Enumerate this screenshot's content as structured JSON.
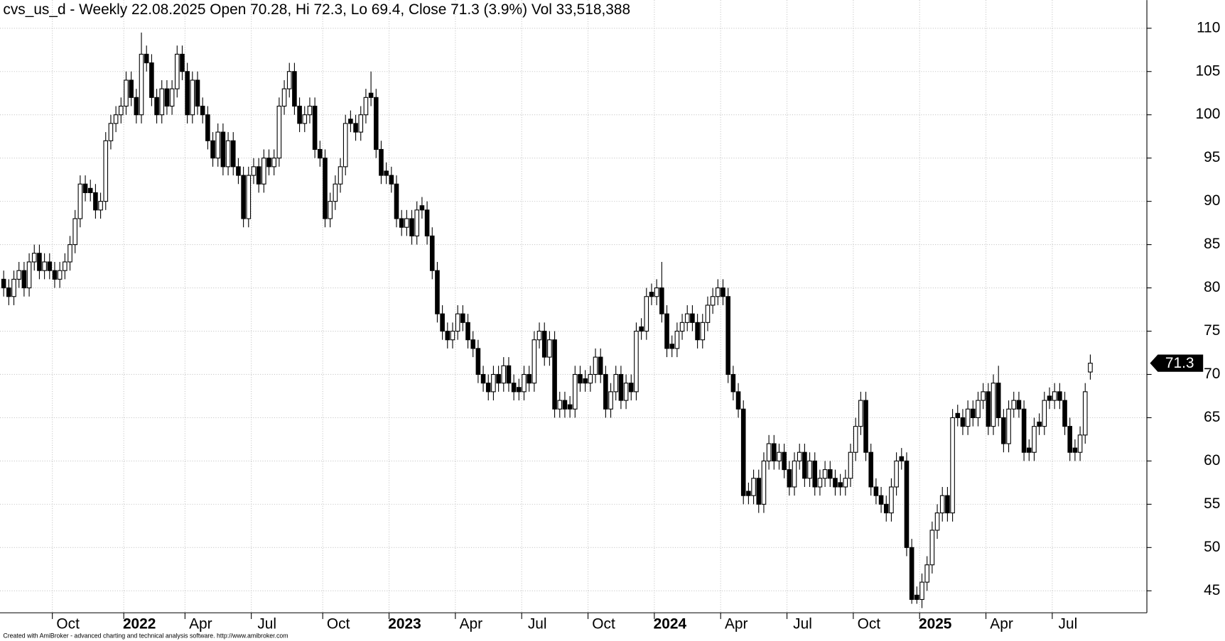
{
  "chart_data": {
    "type": "candlestick",
    "title": "cvs_us_d - Weekly 22.08.2025 Open 70.28, Hi 72.3, Lo 69.4, Close 71.3 (3.9%) Vol 33,518,388",
    "footer": "Created with AmiBroker - advanced charting and technical analysis software. http://www.amibroker.com",
    "categories": [
      null,
      null,
      null,
      null,
      null,
      null,
      null,
      null,
      null,
      null,
      "Oct",
      null,
      null,
      null,
      null,
      null,
      null,
      null,
      null,
      null,
      null,
      null,
      null,
      null,
      "2022",
      null,
      null,
      null,
      null,
      null,
      null,
      null,
      null,
      null,
      null,
      null,
      "Apr",
      null,
      null,
      null,
      null,
      null,
      null,
      null,
      null,
      null,
      null,
      null,
      null,
      "Jul",
      null,
      null,
      null,
      null,
      null,
      null,
      null,
      null,
      null,
      null,
      null,
      null,
      null,
      "Oct",
      null,
      null,
      null,
      null,
      null,
      null,
      null,
      null,
      null,
      null,
      null,
      null,
      "2023",
      null,
      null,
      null,
      null,
      null,
      null,
      null,
      null,
      null,
      null,
      null,
      null,
      "Apr",
      null,
      null,
      null,
      null,
      null,
      null,
      null,
      null,
      null,
      null,
      null,
      null,
      "Jul",
      null,
      null,
      null,
      null,
      null,
      null,
      null,
      null,
      null,
      null,
      null,
      null,
      "Oct",
      null,
      null,
      null,
      null,
      null,
      null,
      null,
      null,
      null,
      null,
      null,
      null,
      "2024",
      null,
      null,
      null,
      null,
      null,
      null,
      null,
      null,
      null,
      null,
      null,
      null,
      "Apr",
      null,
      null,
      null,
      null,
      null,
      null,
      null,
      null,
      null,
      null,
      null,
      null,
      "Jul",
      null,
      null,
      null,
      null,
      null,
      null,
      null,
      null,
      null,
      null,
      null,
      null,
      "Oct",
      null,
      null,
      null,
      null,
      null,
      null,
      null,
      null,
      null,
      null,
      null,
      null,
      "2025",
      null,
      null,
      null,
      null,
      null,
      null,
      null,
      null,
      null,
      null,
      null,
      null,
      "Apr",
      null,
      null,
      null,
      null,
      null,
      null,
      null,
      null,
      null,
      null,
      null,
      null,
      "Jul",
      null,
      null,
      null,
      null,
      null,
      null,
      null
    ],
    "open": [
      81,
      80,
      79,
      81,
      82,
      80,
      83,
      84,
      82,
      83,
      82,
      81,
      82,
      83,
      85,
      88,
      92,
      91.5,
      91,
      89,
      90,
      97,
      99,
      100,
      101,
      104,
      102,
      100,
      107,
      106,
      102,
      100,
      103,
      101,
      103,
      107,
      105,
      100,
      104,
      101,
      100,
      97,
      95,
      98,
      94,
      97,
      94,
      93,
      88,
      93,
      94,
      92,
      95,
      94,
      95,
      101,
      103,
      105,
      101,
      99,
      100,
      101,
      96,
      95,
      88,
      90,
      92,
      94,
      99.5,
      99,
      98,
      100,
      102.5,
      102,
      96,
      93.5,
      93,
      92,
      88,
      87,
      88,
      86,
      89.5,
      89,
      86,
      82,
      77,
      75,
      74,
      75,
      77,
      76,
      74,
      73,
      70,
      69,
      68,
      70,
      69,
      71,
      69,
      68.5,
      68,
      70,
      69,
      74,
      75,
      72,
      74,
      66,
      67,
      66.5,
      66,
      70,
      69.5,
      69,
      70,
      72,
      70,
      66,
      68,
      70,
      67,
      69,
      68,
      75.5,
      75,
      79.5,
      79,
      80,
      77,
      73.5,
      73,
      75,
      76,
      77,
      76,
      74,
      76,
      78,
      79,
      80,
      79,
      70,
      68,
      66,
      56.5,
      56,
      58,
      55,
      60,
      62,
      60,
      61,
      59,
      57,
      60,
      61,
      58,
      60,
      57,
      58,
      59,
      58,
      57.5,
      57,
      58,
      61,
      64,
      67,
      61,
      57,
      56,
      55,
      54,
      57,
      60.5,
      60,
      50,
      44.5,
      44,
      46,
      48,
      52,
      54,
      56,
      54,
      65.5,
      65,
      64,
      66,
      65,
      67,
      68,
      64,
      69,
      65,
      62,
      66,
      67,
      66,
      61.5,
      61,
      64.5,
      64,
      67.5,
      67,
      68,
      67,
      64,
      61.5,
      61,
      63,
      70.28
    ],
    "high": [
      82,
      81,
      82,
      83,
      83,
      84,
      85,
      85,
      84,
      84,
      83,
      83,
      84,
      86,
      89,
      93,
      93,
      92.5,
      92,
      91,
      98,
      100,
      101,
      102,
      105,
      105,
      103,
      109.5,
      108,
      107,
      103,
      104,
      104,
      104,
      108,
      108,
      106,
      105,
      105,
      102,
      101,
      98,
      99,
      99,
      98,
      98,
      95,
      94,
      94,
      95,
      95,
      96,
      96,
      96,
      102,
      104,
      106,
      106,
      102,
      101,
      102,
      102,
      97,
      96,
      91,
      93,
      95,
      100,
      100.5,
      100,
      101,
      103,
      105,
      103,
      97,
      94.5,
      94,
      93,
      89,
      89,
      89,
      90,
      90.5,
      90,
      87,
      83,
      78,
      76,
      76,
      78,
      78,
      77,
      75,
      74,
      71,
      70,
      71,
      71,
      72,
      72,
      70,
      69.5,
      71,
      71,
      75,
      76,
      76,
      75,
      75,
      68,
      68,
      67.5,
      71,
      71,
      70.5,
      71,
      73,
      73,
      71,
      69,
      71,
      71,
      70,
      70,
      76,
      76.5,
      80,
      80.5,
      81,
      83,
      78,
      74.5,
      76,
      77,
      78,
      78,
      77,
      77,
      79,
      80,
      81,
      81,
      80,
      71,
      69,
      67,
      57.5,
      59,
      59,
      61,
      63,
      63,
      62,
      62,
      60,
      61,
      62,
      62,
      61,
      61,
      59,
      60,
      60,
      59,
      58.5,
      59,
      62,
      65,
      68,
      68,
      62,
      58,
      57,
      56,
      58,
      61,
      61.5,
      61,
      51,
      45.5,
      47,
      49,
      53,
      55,
      57,
      57,
      66,
      66.5,
      66,
      67,
      67,
      68,
      69,
      69,
      70,
      71,
      66,
      67,
      68,
      68,
      67,
      62.5,
      65,
      65.5,
      68,
      68.5,
      69,
      69,
      68,
      65,
      62.5,
      64,
      69,
      72.3
    ],
    "low": [
      79,
      78,
      78,
      80,
      79,
      79,
      82,
      81,
      81,
      81,
      80,
      80,
      81,
      82,
      84,
      87,
      90,
      90,
      88,
      88,
      89,
      96,
      98,
      99,
      100,
      101,
      99,
      99,
      105,
      101,
      99,
      99,
      100,
      100,
      102,
      104,
      99,
      99,
      100,
      99,
      96,
      94,
      94,
      93,
      93,
      93,
      92,
      87,
      87,
      92,
      91,
      91,
      93,
      93,
      94,
      100,
      102,
      100,
      98,
      98,
      99,
      95,
      94,
      87,
      87,
      89,
      91,
      93,
      98,
      97,
      97,
      99,
      101,
      95,
      92,
      92,
      91,
      87,
      86,
      86,
      85,
      85,
      88,
      85,
      81,
      76,
      74,
      73,
      73,
      74,
      75,
      73,
      72,
      69,
      68,
      67,
      67,
      68,
      68,
      68,
      67,
      67,
      67,
      68,
      68,
      73,
      71,
      71,
      65,
      65,
      65,
      65,
      65,
      68,
      68,
      68,
      69,
      69,
      65,
      65,
      67,
      66,
      66,
      67,
      67,
      74,
      74,
      78,
      78,
      76,
      72,
      72,
      72,
      74,
      75,
      75,
      73,
      73,
      75,
      77,
      78,
      78,
      69,
      67,
      65,
      55,
      55,
      55,
      54,
      54,
      59,
      59,
      59,
      58,
      56,
      56,
      59,
      57,
      57,
      56,
      56,
      57,
      57,
      56,
      56,
      56,
      57,
      60,
      63,
      60,
      56,
      55,
      54,
      53,
      53,
      56,
      59,
      49,
      43.5,
      43.5,
      43,
      45,
      47,
      51,
      53,
      53,
      53,
      64,
      63,
      63,
      64,
      64,
      66,
      63,
      63,
      64,
      61,
      61,
      65,
      65,
      60,
      60,
      60,
      63,
      63,
      66,
      66,
      66,
      63,
      60,
      60,
      60,
      62,
      69.4
    ],
    "close": [
      80,
      79,
      81,
      82,
      80,
      83,
      84,
      82,
      83,
      82,
      81,
      82,
      83,
      85,
      88,
      92,
      91,
      91,
      89,
      90,
      97,
      99,
      100,
      101,
      104,
      102,
      100,
      107,
      106,
      102,
      100,
      103,
      101,
      103,
      107,
      105,
      100,
      104,
      101,
      100,
      97,
      95,
      98,
      94,
      97,
      94,
      93,
      88,
      93,
      94,
      92,
      95,
      94,
      95,
      101,
      103,
      105,
      101,
      99,
      100,
      101,
      96,
      95,
      88,
      90,
      92,
      94,
      99,
      99,
      98,
      100,
      102,
      102,
      96,
      93,
      93,
      92,
      88,
      87,
      88,
      86,
      89,
      89,
      86,
      82,
      77,
      75,
      74,
      75,
      77,
      76,
      74,
      73,
      70,
      69,
      68,
      70,
      69,
      71,
      69,
      68,
      68,
      70,
      69,
      74,
      75,
      72,
      74,
      66,
      67,
      66,
      66,
      70,
      69,
      69,
      70,
      72,
      70,
      66,
      68,
      70,
      67,
      69,
      68,
      75,
      75,
      79,
      79,
      80,
      77,
      73,
      73,
      75,
      76,
      77,
      76,
      74,
      76,
      78,
      79,
      80,
      79,
      70,
      68,
      66,
      56,
      56,
      58,
      55,
      60,
      62,
      60,
      61,
      59,
      57,
      60,
      61,
      58,
      60,
      57,
      58,
      59,
      58,
      57,
      57,
      58,
      61,
      64,
      67,
      61,
      57,
      56,
      55,
      54,
      57,
      60,
      60,
      50,
      44,
      44,
      46,
      48,
      52,
      54,
      56,
      54,
      65,
      65,
      64,
      66,
      65,
      67,
      68,
      64,
      69,
      65,
      62,
      66,
      67,
      66,
      61,
      61,
      64,
      64,
      67,
      67,
      68,
      67,
      64,
      61,
      61,
      63,
      68,
      71.3
    ],
    "ylim": [
      42.46,
      113.25
    ],
    "yticks": [
      45,
      50,
      55,
      60,
      65,
      70,
      75,
      80,
      85,
      90,
      95,
      100,
      105,
      110
    ],
    "grid": true,
    "up_color": "#ffffff",
    "down_color": "#000000"
  }
}
